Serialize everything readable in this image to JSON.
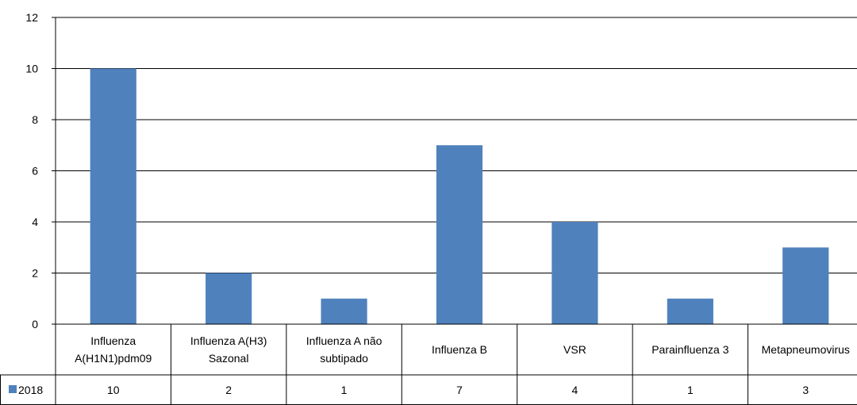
{
  "chart_data": {
    "type": "bar",
    "title": "",
    "xlabel": "",
    "ylabel": "",
    "categories": [
      [
        "Influenza",
        "A(H1N1)pdm09"
      ],
      [
        "Influenza A(H3)",
        "Sazonal"
      ],
      [
        "Influenza A não",
        "subtipado"
      ],
      [
        "Influenza B"
      ],
      [
        "VSR"
      ],
      [
        "Parainfluenza 3"
      ],
      [
        "Metapneumovirus"
      ]
    ],
    "series": [
      {
        "name": "2018",
        "values": [
          10,
          2,
          1,
          7,
          4,
          1,
          3
        ],
        "color": "#4F81BD"
      }
    ],
    "ylim": [
      0,
      12
    ],
    "yticks": [
      0,
      2,
      4,
      6,
      8,
      10,
      12
    ],
    "grid": true,
    "legend": "data-table-left",
    "data_table": true
  }
}
